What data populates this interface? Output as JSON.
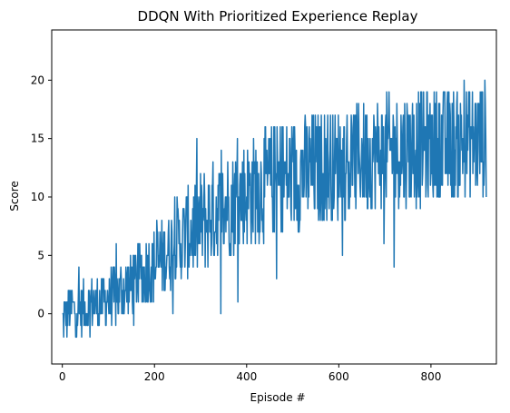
{
  "chart_data": {
    "type": "line",
    "title": "DDQN With Prioritized Experience Replay",
    "xlabel": "Episode #",
    "ylabel": "Score",
    "xlim": [
      -23,
      942
    ],
    "ylim": [
      -4.3,
      24.3
    ],
    "xticks": [
      0,
      200,
      400,
      600,
      800
    ],
    "yticks": [
      0,
      5,
      10,
      15,
      20
    ],
    "grid": false,
    "legend": "none",
    "series": [
      {
        "color": "#1f77b4",
        "x": [
          0,
          10,
          20,
          30,
          40,
          50,
          60,
          70,
          80,
          90,
          100,
          110,
          120,
          130,
          140,
          150,
          160,
          170,
          180,
          190,
          200,
          210,
          220,
          230,
          240,
          250,
          260,
          270,
          280,
          290,
          300,
          310,
          320,
          330,
          340,
          350,
          360,
          370,
          380,
          390,
          400,
          410,
          420,
          430,
          440,
          450,
          460,
          470,
          480,
          490,
          500,
          510,
          520,
          530,
          540,
          550,
          560,
          570,
          580,
          590,
          600,
          610,
          620,
          630,
          640,
          650,
          660,
          670,
          680,
          690,
          700,
          710,
          720,
          730,
          740,
          750,
          760,
          770,
          780,
          790,
          800,
          810,
          820,
          830,
          840,
          850,
          860,
          870,
          880,
          890,
          900,
          910
        ],
        "y": [
          -0.5,
          0.0,
          0.3,
          0.5,
          0.6,
          0.6,
          0.8,
          0.9,
          1.0,
          1.1,
          1.3,
          1.5,
          1.7,
          1.9,
          2.2,
          2.5,
          2.8,
          3.2,
          3.6,
          3.9,
          4.2,
          4.6,
          5.0,
          5.4,
          5.8,
          6.2,
          6.5,
          6.8,
          7.1,
          7.4,
          7.7,
          8.0,
          8.3,
          8.6,
          8.9,
          9.2,
          9.5,
          9.7,
          9.9,
          10.1,
          10.3,
          10.5,
          10.7,
          10.8,
          11.0,
          11.2,
          11.3,
          11.5,
          11.6,
          11.7,
          11.9,
          12.0,
          12.1,
          12.2,
          12.3,
          12.4,
          12.5,
          12.6,
          12.7,
          12.8,
          12.9,
          13.0,
          13.1,
          13.2,
          13.3,
          13.4,
          13.5,
          13.6,
          13.6,
          13.7,
          13.8,
          13.8,
          13.9,
          14.0,
          14.0,
          14.1,
          14.1,
          14.2,
          14.2,
          14.3,
          14.3,
          14.4,
          14.4,
          14.5,
          14.5,
          14.6,
          14.6,
          14.7,
          14.7,
          14.8,
          14.8,
          14.9
        ],
        "noise_amplitude": [
          1.6,
          1.6,
          1.8,
          1.8,
          1.8,
          1.8,
          1.8,
          1.9,
          1.9,
          2.0,
          2.0,
          2.0,
          2.1,
          2.1,
          2.2,
          2.2,
          2.3,
          2.3,
          2.4,
          2.4,
          2.5,
          2.5,
          2.6,
          2.7,
          2.8,
          2.9,
          3.0,
          3.1,
          3.2,
          3.3,
          3.4,
          3.5,
          3.5,
          3.6,
          3.6,
          3.7,
          3.7,
          3.8,
          3.8,
          3.8,
          3.8,
          3.9,
          3.9,
          3.9,
          3.9,
          3.9,
          3.9,
          3.9,
          3.9,
          3.9,
          3.9,
          3.9,
          3.9,
          3.9,
          3.9,
          3.9,
          3.9,
          3.9,
          3.9,
          3.9,
          3.9,
          3.9,
          3.9,
          3.9,
          3.9,
          3.9,
          3.9,
          3.9,
          3.9,
          3.9,
          3.9,
          3.9,
          3.9,
          3.9,
          3.9,
          3.9,
          3.9,
          3.9,
          3.9,
          3.9,
          3.9,
          3.9,
          3.9,
          3.9,
          3.9,
          3.9,
          3.9,
          3.9,
          3.9,
          3.9,
          3.9,
          3.9
        ],
        "episodes": 921,
        "min": -3,
        "max": 23
      }
    ]
  }
}
